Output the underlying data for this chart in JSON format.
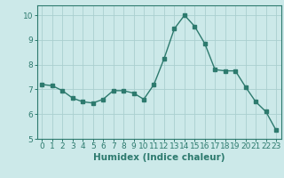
{
  "x": [
    0,
    1,
    2,
    3,
    4,
    5,
    6,
    7,
    8,
    9,
    10,
    11,
    12,
    13,
    14,
    15,
    16,
    17,
    18,
    19,
    20,
    21,
    22,
    23
  ],
  "y": [
    7.2,
    7.15,
    6.95,
    6.65,
    6.5,
    6.45,
    6.6,
    6.95,
    6.95,
    6.85,
    6.6,
    7.2,
    8.25,
    9.45,
    10.0,
    9.55,
    8.85,
    7.8,
    7.75,
    7.75,
    7.1,
    6.5,
    6.1,
    5.35
  ],
  "line_color": "#2d7a6e",
  "marker": "s",
  "marker_size": 2.2,
  "line_width": 1.0,
  "xlabel": "Humidex (Indice chaleur)",
  "ylim": [
    5,
    10.4
  ],
  "xlim": [
    -0.5,
    23.5
  ],
  "yticks": [
    5,
    6,
    7,
    8,
    9,
    10
  ],
  "xticks": [
    0,
    1,
    2,
    3,
    4,
    5,
    6,
    7,
    8,
    9,
    10,
    11,
    12,
    13,
    14,
    15,
    16,
    17,
    18,
    19,
    20,
    21,
    22,
    23
  ],
  "bg_color": "#cce9e9",
  "grid_color": "#aacfcf",
  "tick_label_fontsize": 6.5,
  "xlabel_fontsize": 7.5
}
